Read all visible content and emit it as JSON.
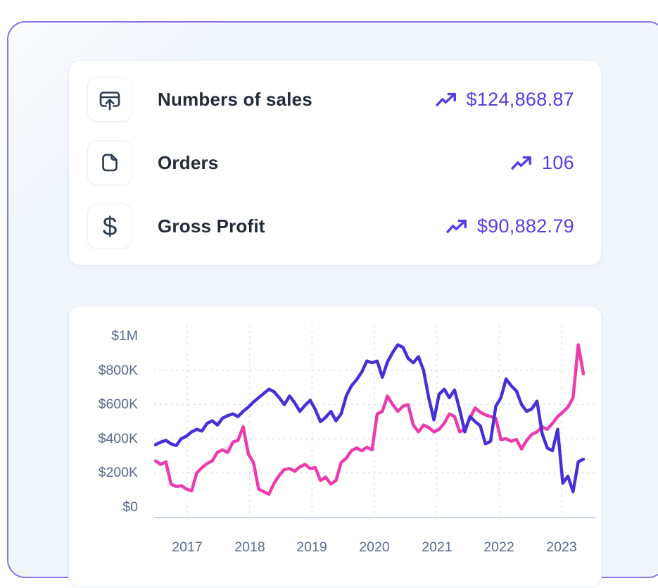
{
  "colors": {
    "accent_purple": "#5a3ce3",
    "panel_border_purple": "#8672ea",
    "panel_background": "#f0f5fa",
    "line_blue": "#4531d8",
    "line_pink": "#ec3bac",
    "icon_stroke": "#2e3a4e",
    "tick_text": "#5a6a8a",
    "label_text": "#232b3a"
  },
  "stats": {
    "rows": [
      {
        "icon": "card-upload-icon",
        "label": "Numbers of sales",
        "value": "$124,868.87",
        "trend": "up"
      },
      {
        "icon": "file-icon",
        "label": "Orders",
        "value": "106",
        "trend": "up"
      },
      {
        "icon": "dollar-icon",
        "label": "Gross Profit",
        "value": "$90,882.79",
        "trend": "up",
        "dollar_glyph": "$"
      }
    ]
  },
  "chart_data": {
    "type": "line",
    "title": "",
    "xlabel": "",
    "ylabel": "",
    "unit": "USD",
    "values_unit": "thousands of USD",
    "x_start_year": 2016.5,
    "x_end_year": 2023.35,
    "sampling": "monthly (estimated from plot)",
    "x_ticks": [
      "2017",
      "2018",
      "2019",
      "2020",
      "2021",
      "2022",
      "2023"
    ],
    "y_ticks": [
      "$1M",
      "$800K",
      "$600K",
      "$400K",
      "$200K",
      "$0"
    ],
    "ylim": [
      0,
      1000000
    ],
    "grid": "dashed",
    "legend": "none",
    "series": [
      {
        "name": "pink-line",
        "color": "#ec3bac",
        "values_k": [
          270,
          250,
          265,
          135,
          120,
          125,
          105,
          95,
          200,
          230,
          255,
          270,
          320,
          335,
          320,
          380,
          390,
          470,
          310,
          260,
          105,
          90,
          75,
          140,
          185,
          220,
          225,
          210,
          235,
          250,
          225,
          230,
          155,
          175,
          135,
          155,
          260,
          285,
          330,
          345,
          330,
          350,
          335,
          545,
          560,
          650,
          600,
          560,
          590,
          600,
          480,
          440,
          480,
          465,
          440,
          455,
          490,
          545,
          530,
          440,
          455,
          520,
          580,
          555,
          540,
          530,
          520,
          395,
          400,
          385,
          395,
          340,
          390,
          425,
          440,
          470,
          455,
          490,
          530,
          555,
          585,
          640,
          950,
          780
        ]
      },
      {
        "name": "blue-line",
        "color": "#4531d8",
        "values_k": [
          365,
          380,
          390,
          370,
          360,
          400,
          415,
          440,
          455,
          445,
          490,
          505,
          480,
          520,
          535,
          545,
          530,
          560,
          585,
          615,
          640,
          665,
          690,
          675,
          640,
          600,
          650,
          610,
          560,
          595,
          625,
          570,
          500,
          525,
          560,
          505,
          545,
          650,
          710,
          745,
          790,
          855,
          845,
          855,
          760,
          850,
          905,
          950,
          935,
          870,
          845,
          880,
          800,
          640,
          510,
          660,
          690,
          640,
          685,
          570,
          440,
          530,
          500,
          475,
          370,
          385,
          590,
          640,
          750,
          710,
          680,
          600,
          560,
          575,
          620,
          430,
          345,
          330,
          455,
          140,
          180,
          90,
          265,
          280
        ]
      }
    ]
  }
}
